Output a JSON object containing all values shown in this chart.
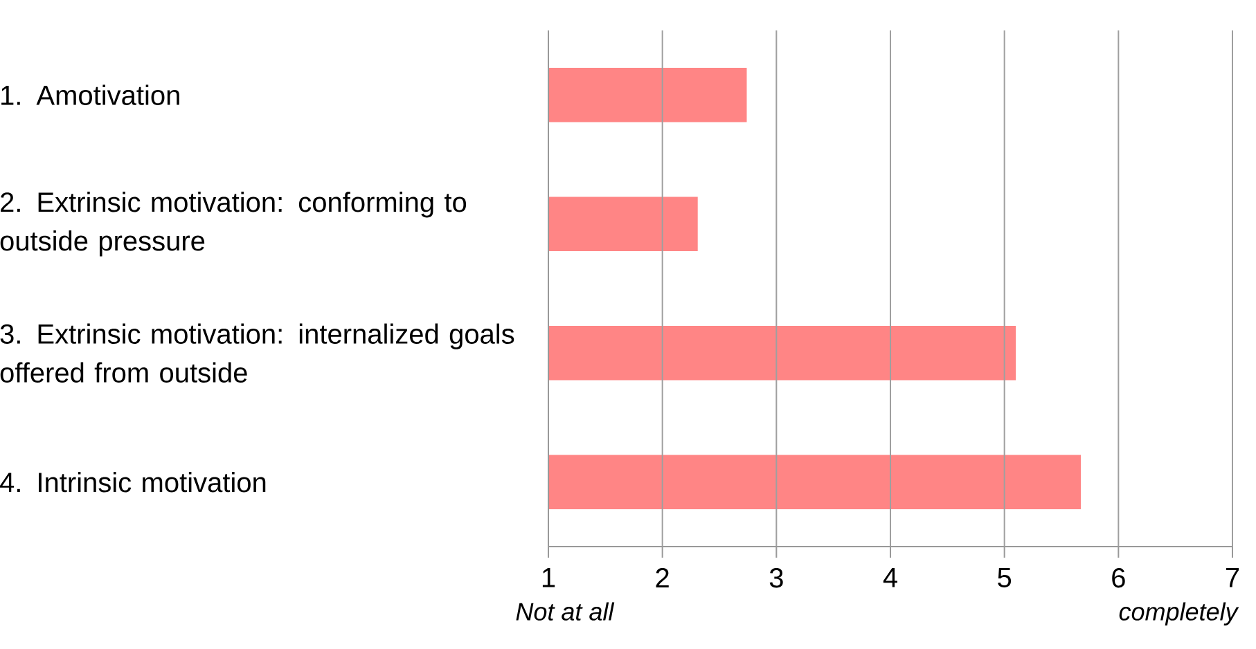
{
  "chart_data": {
    "type": "bar",
    "orientation": "horizontal",
    "categories": [
      "1. Amotivation",
      "2. Extrinsic motivation: conforming to outside pressure",
      "3. Extrinsic motivation: internalized goals offered from outside",
      "4. Intrinsic motivation"
    ],
    "values": [
      2.74,
      2.31,
      5.1,
      5.67
    ],
    "color": "#ff8585",
    "xlim": [
      1,
      7
    ],
    "xticks": [
      1,
      2,
      3,
      4,
      5,
      6,
      7
    ],
    "grid": "x",
    "annotations": [
      "Not at all",
      "completely"
    ]
  }
}
